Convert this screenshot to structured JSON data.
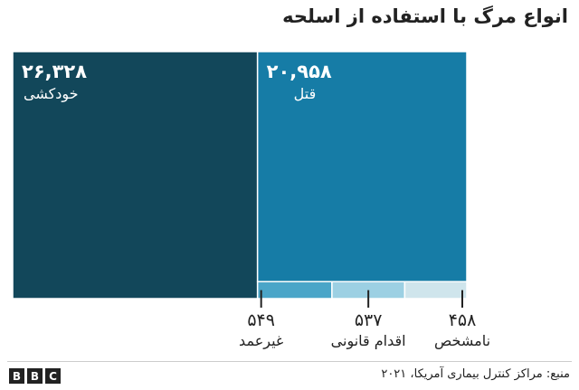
{
  "title": "انواع مرگ با استفاده از اسلحه",
  "source": "منبع: مراکز کنترل بیماری آمریکا، ۲۰۲۱",
  "brand": "BBC",
  "chart_data": {
    "type": "treemap",
    "title": "انواع مرگ با استفاده از اسلحه",
    "items": [
      {
        "label": "خودکشی",
        "value": 26328,
        "value_label": "۲۶,۳۲۸",
        "color": "#12475a"
      },
      {
        "label": "قتل",
        "value": 20958,
        "value_label": "۲۰,۹۵۸",
        "color": "#167ca6"
      },
      {
        "label": "غیرعمد",
        "value": 549,
        "value_label": "۵۴۹",
        "color": "#4aa5c8"
      },
      {
        "label": "اقدام قانونی",
        "value": 537,
        "value_label": "۵۳۷",
        "color": "#9cd0e3"
      },
      {
        "label": "نامشخص",
        "value": 458,
        "value_label": "۴۵۸",
        "color": "#cfe5ec"
      }
    ]
  }
}
